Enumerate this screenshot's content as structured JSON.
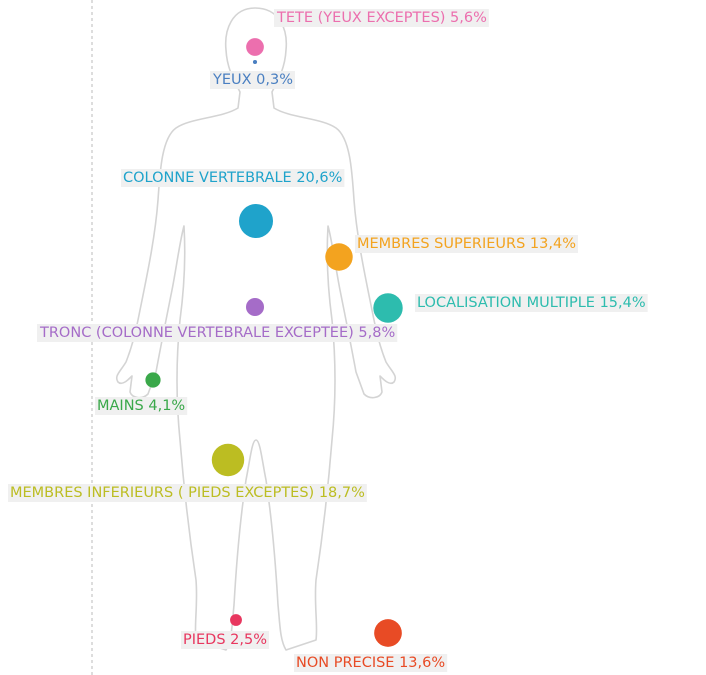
{
  "chart_data": {
    "type": "bubble",
    "categories": [
      "TETE (YEUX EXCEPTES)",
      "YEUX",
      "COLONNE VERTEBRALE",
      "MEMBRES SUPERIEURS",
      "LOCALISATION MULTIPLE",
      "TRONC (COLONNE VERTEBRALE EXCEPTEE)",
      "MAINS",
      "MEMBRES INFERIEURS ( PIEDS EXCEPTES)",
      "PIEDS",
      "NON PRECISE"
    ],
    "values": [
      5.6,
      0.3,
      20.6,
      13.4,
      15.4,
      5.8,
      4.1,
      18.7,
      2.5,
      13.6
    ],
    "value_labels": [
      "5,6%",
      "0,3%",
      "20,6%",
      "13,4%",
      "15,4%",
      "5,8%",
      "4,1%",
      "18,7%",
      "2,5%",
      "13,6%"
    ],
    "colors": [
      "#ec6fae",
      "#4a7fc1",
      "#1fa3cb",
      "#f3a31f",
      "#2dbcae",
      "#a56cc8",
      "#3aa84a",
      "#bcbd22",
      "#e8375f",
      "#e84b25"
    ]
  }
}
